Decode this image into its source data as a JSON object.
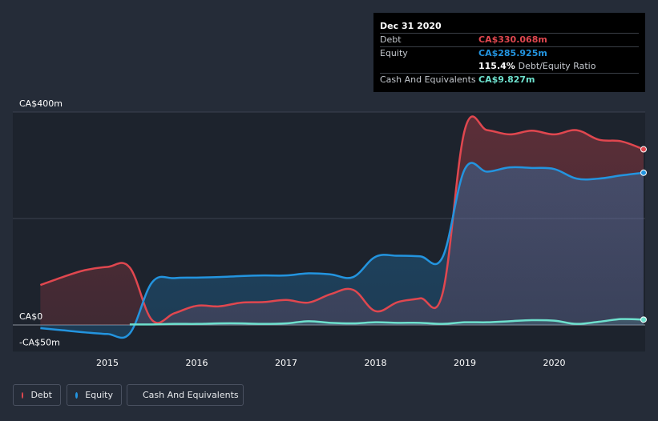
{
  "tooltip": {
    "date": "Dec 31 2020",
    "debt_label": "Debt",
    "debt_value": "CA$330.068m",
    "equity_label": "Equity",
    "equity_value": "CA$285.925m",
    "ratio_value": "115.4%",
    "ratio_label": "Debt/Equity Ratio",
    "cash_label": "Cash And Equivalents",
    "cash_value": "CA$9.827m"
  },
  "legend": {
    "debt": "Debt",
    "equity": "Equity",
    "cash": "Cash And Equivalents"
  },
  "colors": {
    "debt": "#e0474f",
    "equity": "#2394df",
    "cash": "#6ee0cd",
    "background": "#252c38"
  },
  "chart_data": {
    "type": "area",
    "ylim": [
      -50,
      400
    ],
    "y_tick_labels": [
      "CA$400m",
      "CA$0",
      "-CA$50m"
    ],
    "x_tick_labels": [
      "2015",
      "2016",
      "2017",
      "2018",
      "2019",
      "2020"
    ],
    "series": [
      {
        "name": "Debt",
        "x": [
          2014.25,
          2014.5,
          2014.75,
          2015.0,
          2015.25,
          2015.5,
          2015.75,
          2016.0,
          2016.25,
          2016.5,
          2016.75,
          2017.0,
          2017.25,
          2017.5,
          2017.75,
          2018.0,
          2018.25,
          2018.5,
          2018.75,
          2019.0,
          2019.25,
          2019.5,
          2019.75,
          2020.0,
          2020.25,
          2020.5,
          2020.75,
          2021.0
        ],
        "values": [
          75,
          90,
          103,
          109,
          108,
          9,
          22,
          36,
          35,
          42,
          43,
          47,
          42,
          58,
          66,
          26,
          43,
          50,
          59,
          367,
          366,
          358,
          365,
          358,
          366,
          348,
          345,
          330
        ]
      },
      {
        "name": "Equity",
        "x": [
          2014.25,
          2014.5,
          2014.75,
          2015.0,
          2015.25,
          2015.5,
          2015.75,
          2016.0,
          2016.25,
          2016.5,
          2016.75,
          2017.0,
          2017.25,
          2017.5,
          2017.75,
          2018.0,
          2018.25,
          2018.5,
          2018.75,
          2019.0,
          2019.25,
          2019.5,
          2019.75,
          2020.0,
          2020.25,
          2020.5,
          2020.75,
          2021.0
        ],
        "values": [
          -6,
          -10,
          -14,
          -17,
          -16,
          80,
          88,
          89,
          90,
          92,
          93,
          93,
          97,
          95,
          90,
          128,
          130,
          129,
          127,
          293,
          288,
          296,
          295,
          293,
          275,
          275,
          281,
          286
        ]
      },
      {
        "name": "Cash And Equivalents",
        "x": [
          2015.25,
          2015.5,
          2015.75,
          2016.0,
          2016.25,
          2016.5,
          2016.75,
          2017.0,
          2017.25,
          2017.5,
          2017.75,
          2018.0,
          2018.25,
          2018.5,
          2018.75,
          2019.0,
          2019.25,
          2019.5,
          2019.75,
          2020.0,
          2020.25,
          2020.5,
          2020.75,
          2021.0
        ],
        "values": [
          1,
          1,
          2,
          2,
          3,
          3,
          2,
          3,
          7,
          4,
          3,
          5,
          4,
          4,
          2,
          5,
          5,
          7,
          9,
          8,
          2,
          6,
          11,
          10
        ]
      }
    ]
  }
}
